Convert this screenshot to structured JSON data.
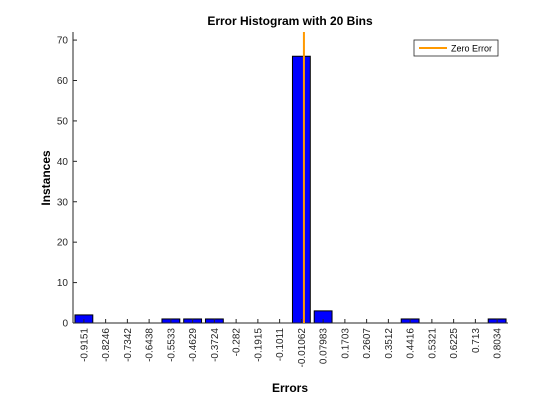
{
  "chart_data": {
    "type": "bar",
    "title": "Error Histogram with 20 Bins",
    "xlabel": "Errors",
    "ylabel": "Instances",
    "ylim": [
      0,
      72
    ],
    "yticks": [
      0,
      10,
      20,
      30,
      40,
      50,
      60,
      70
    ],
    "categories": [
      "-0.9151",
      "-0.8246",
      "-0.7342",
      "-0.6438",
      "-0.5533",
      "-0.4629",
      "-0.3724",
      "-0.282",
      "-0.1915",
      "-0.1011",
      "-0.01062",
      "0.07983",
      "0.1703",
      "0.2607",
      "0.3512",
      "0.4416",
      "0.5321",
      "0.6225",
      "0.713",
      "0.8034"
    ],
    "series": [
      {
        "values": [
          2,
          0,
          0,
          0,
          1,
          1,
          1,
          0,
          0,
          0,
          66,
          3,
          0,
          0,
          0,
          1,
          0,
          0,
          0,
          1
        ],
        "color": "#0000ff"
      }
    ],
    "zero_error_line": {
      "name": "Zero Error",
      "x": 0,
      "color": "#ff9900"
    },
    "legend_position": "top-right",
    "grid": false
  }
}
